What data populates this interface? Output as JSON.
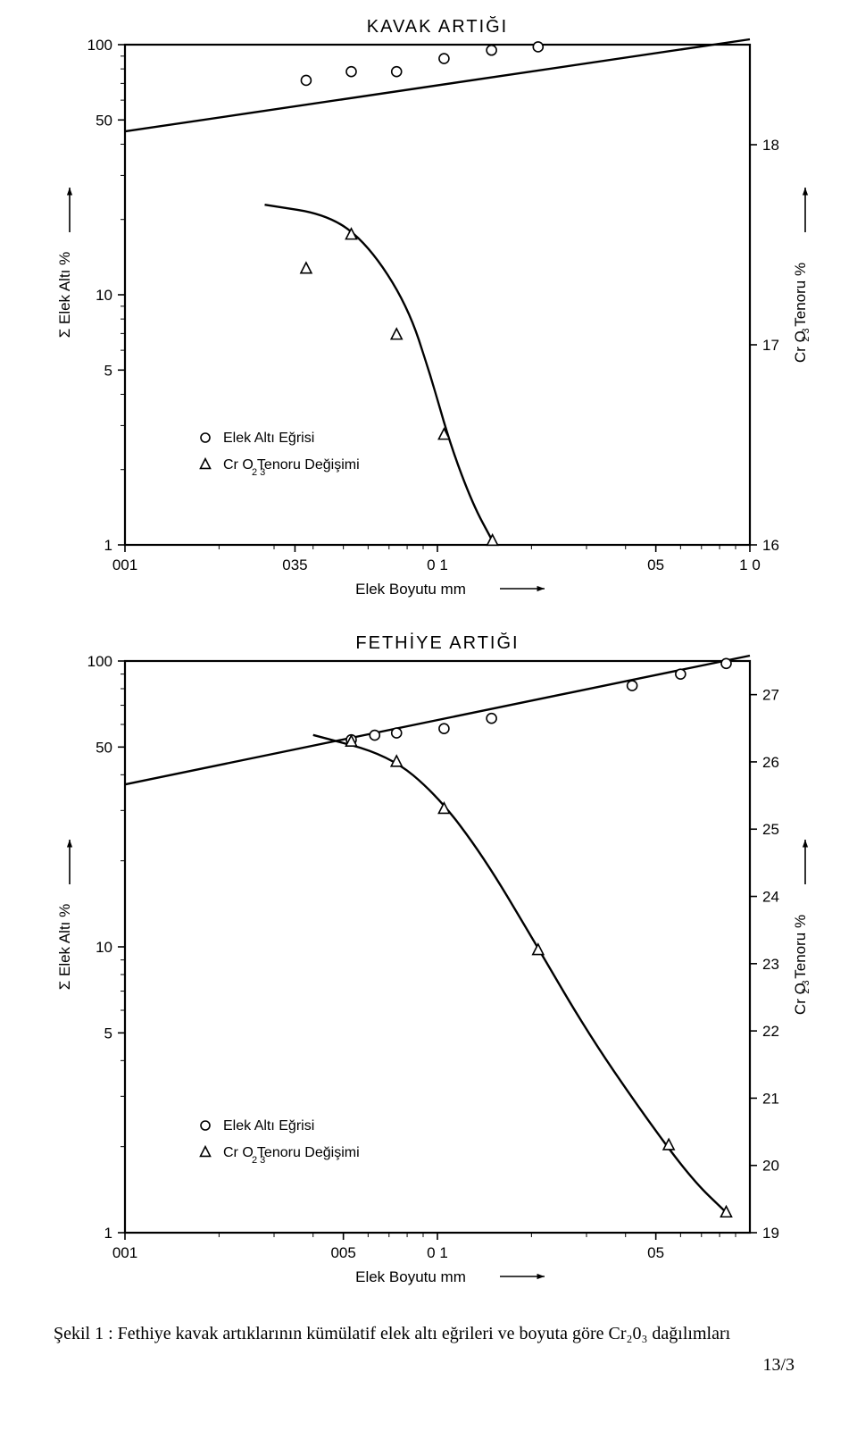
{
  "colors": {
    "ink": "#000000",
    "bg": "#ffffff"
  },
  "stroke": {
    "frame": 2.2,
    "tick": 1.6,
    "curve": 2.4,
    "marker": 1.6
  },
  "font": {
    "title_pt": 20,
    "axis_pt": 17,
    "tick_pt": 17,
    "legend_pt": 16
  },
  "chart1": {
    "title": "KAVAK ARTIĞI",
    "x_label": "Elek   Boyutu   mm",
    "y_left_label": "Σ Elek  Altı %",
    "y_right_label": "Cr O   Tenoru %",
    "y_right_sub": "2  3",
    "x_log_ticks": [
      {
        "v": 0.01,
        "label": "001"
      },
      {
        "v": 0.035,
        "label": "035"
      },
      {
        "v": 0.1,
        "label": "0 1"
      },
      {
        "v": 0.5,
        "label": "05"
      },
      {
        "v": 1.0,
        "label": "1 0"
      }
    ],
    "x_range": [
      0.01,
      1.0
    ],
    "y_left_log_ticks": [
      {
        "v": 1,
        "label": "1"
      },
      {
        "v": 5,
        "label": "5"
      },
      {
        "v": 10,
        "label": "10"
      },
      {
        "v": 50,
        "label": "50"
      },
      {
        "v": 100,
        "label": "100"
      }
    ],
    "y_left_range": [
      1,
      100
    ],
    "y_right_ticks": [
      {
        "v": 16,
        "label": "16"
      },
      {
        "v": 17,
        "label": "17"
      },
      {
        "v": 18,
        "label": "18"
      }
    ],
    "y_right_range": [
      16,
      18.5
    ],
    "legend": [
      {
        "marker": "circle",
        "text": "Elek Altı Eğrisi"
      },
      {
        "marker": "triangle",
        "text": "Cr O   Tenoru Değişimi",
        "sub": "2 3"
      }
    ],
    "series_line": {
      "marker": "circle",
      "points": [
        {
          "x": 0.038,
          "y": 72
        },
        {
          "x": 0.053,
          "y": 78
        },
        {
          "x": 0.074,
          "y": 78
        },
        {
          "x": 0.105,
          "y": 88
        },
        {
          "x": 0.149,
          "y": 95
        },
        {
          "x": 0.21,
          "y": 98
        }
      ],
      "fit": [
        [
          0.01,
          45
        ],
        [
          1.0,
          120
        ]
      ]
    },
    "series_tri": {
      "marker": "triangle",
      "points": [
        {
          "x": 0.038,
          "y": 17.38
        },
        {
          "x": 0.053,
          "y": 17.55
        },
        {
          "x": 0.074,
          "y": 17.05
        },
        {
          "x": 0.105,
          "y": 16.55
        },
        {
          "x": 0.15,
          "y": 16.02
        }
      ],
      "curve": [
        [
          0.028,
          17.7
        ],
        [
          0.045,
          17.65
        ],
        [
          0.06,
          17.5
        ],
        [
          0.08,
          17.2
        ],
        [
          0.095,
          16.85
        ],
        [
          0.11,
          16.5
        ],
        [
          0.13,
          16.2
        ],
        [
          0.15,
          16.02
        ]
      ]
    }
  },
  "chart2": {
    "title": "FETHİYE ARTIĞI",
    "x_label": "Elek  Boyutu  mm",
    "y_left_label": "Σ Elek Altı %",
    "y_right_label": "Cr O   Tenoru %",
    "y_right_sub": "2  3",
    "x_log_ticks": [
      {
        "v": 0.01,
        "label": "001"
      },
      {
        "v": 0.05,
        "label": "005"
      },
      {
        "v": 0.1,
        "label": "0 1"
      },
      {
        "v": 0.5,
        "label": "05"
      }
    ],
    "x_range": [
      0.01,
      1.0
    ],
    "y_left_log_ticks": [
      {
        "v": 1,
        "label": "1"
      },
      {
        "v": 5,
        "label": "5"
      },
      {
        "v": 10,
        "label": "10"
      },
      {
        "v": 50,
        "label": "50"
      },
      {
        "v": 100,
        "label": "100"
      }
    ],
    "y_left_range": [
      1,
      100
    ],
    "y_right_ticks": [
      {
        "v": 19,
        "label": "19"
      },
      {
        "v": 20,
        "label": "20"
      },
      {
        "v": 21,
        "label": "21"
      },
      {
        "v": 22,
        "label": "22"
      },
      {
        "v": 23,
        "label": "23"
      },
      {
        "v": 24,
        "label": "24"
      },
      {
        "v": 25,
        "label": "25"
      },
      {
        "v": 26,
        "label": "26"
      },
      {
        "v": 27,
        "label": "27"
      }
    ],
    "y_right_range": [
      19,
      27.5
    ],
    "legend": [
      {
        "marker": "circle",
        "text": "Elek Altı Eğrisi"
      },
      {
        "marker": "triangle",
        "text": "Cr O   Tenoru Değişimi",
        "sub": "2 3"
      }
    ],
    "series_line": {
      "marker": "circle",
      "points": [
        {
          "x": 0.053,
          "y": 53
        },
        {
          "x": 0.063,
          "y": 55
        },
        {
          "x": 0.074,
          "y": 56
        },
        {
          "x": 0.105,
          "y": 58
        },
        {
          "x": 0.149,
          "y": 63
        },
        {
          "x": 0.42,
          "y": 82
        },
        {
          "x": 0.6,
          "y": 90
        },
        {
          "x": 0.84,
          "y": 98
        }
      ],
      "fit": [
        [
          0.01,
          37
        ],
        [
          1.0,
          100
        ]
      ]
    },
    "series_tri": {
      "marker": "triangle",
      "points": [
        {
          "x": 0.053,
          "y": 26.3
        },
        {
          "x": 0.074,
          "y": 26.0
        },
        {
          "x": 0.105,
          "y": 25.3
        },
        {
          "x": 0.21,
          "y": 23.2
        },
        {
          "x": 0.55,
          "y": 20.3
        },
        {
          "x": 0.84,
          "y": 19.3
        }
      ],
      "curve": [
        [
          0.04,
          26.4
        ],
        [
          0.07,
          26.1
        ],
        [
          0.1,
          25.5
        ],
        [
          0.14,
          24.6
        ],
        [
          0.2,
          23.4
        ],
        [
          0.3,
          22.0
        ],
        [
          0.45,
          20.8
        ],
        [
          0.65,
          19.8
        ],
        [
          0.84,
          19.3
        ]
      ]
    }
  },
  "caption": "Şekil 1 : Fethiye kavak artıklarının kümülatif elek altı eğrileri ve boyuta göre Cr₂0₃ dağılımları",
  "page_number": "13/3"
}
